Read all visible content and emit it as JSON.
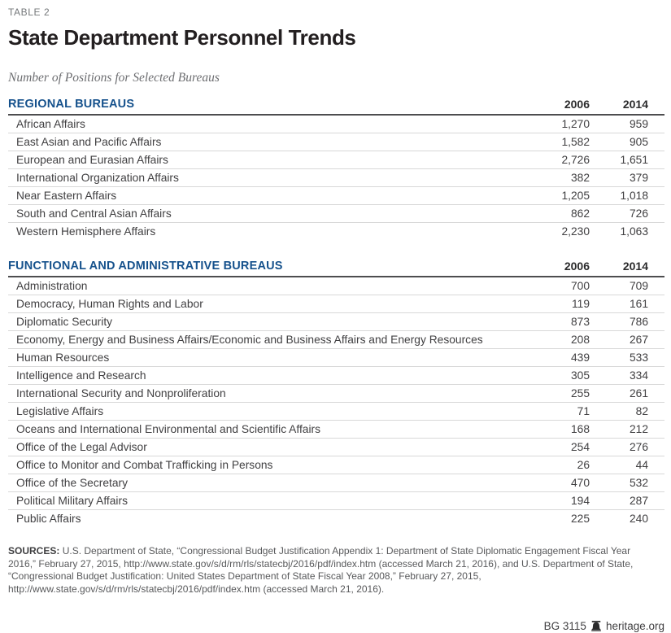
{
  "colors": {
    "accent_blue": "#15518c",
    "header_rule": "#4d4d4f",
    "row_rule": "#d8d8d8",
    "text_dark": "#414042",
    "subtitle_gray": "#6d6e71",
    "source_gray": "#58595b"
  },
  "header": {
    "table_label": "TABLE 2",
    "title": "State Department Personnel Trends",
    "subtitle": "Number of Positions for Selected Bureaus"
  },
  "chart_data": {
    "type": "table",
    "title": "State Department Personnel Trends",
    "subtitle": "Number of Positions for Selected Bureaus",
    "columns": [
      "2006",
      "2014"
    ],
    "sections": [
      {
        "header": "REGIONAL BUREAUS",
        "rows": [
          {
            "label": "African Affairs",
            "v2006": "1,270",
            "v2014": "959"
          },
          {
            "label": "East Asian and Pacific Affairs",
            "v2006": "1,582",
            "v2014": "905"
          },
          {
            "label": "European and Eurasian Affairs",
            "v2006": "2,726",
            "v2014": "1,651"
          },
          {
            "label": "International Organization Affairs",
            "v2006": "382",
            "v2014": "379"
          },
          {
            "label": "Near Eastern Affairs",
            "v2006": "1,205",
            "v2014": "1,018"
          },
          {
            "label": "South and Central Asian Affairs",
            "v2006": "862",
            "v2014": "726"
          },
          {
            "label": "Western Hemisphere Affairs",
            "v2006": "2,230",
            "v2014": "1,063"
          }
        ]
      },
      {
        "header": "FUNCTIONAL AND ADMINISTRATIVE BUREAUS",
        "rows": [
          {
            "label": "Administration",
            "v2006": "700",
            "v2014": "709"
          },
          {
            "label": "Democracy, Human Rights and Labor",
            "v2006": "119",
            "v2014": "161"
          },
          {
            "label": "Diplomatic Security",
            "v2006": "873",
            "v2014": "786"
          },
          {
            "label": "Economy, Energy and Business Affairs/Economic and Business Affairs and Energy Resources",
            "v2006": "208",
            "v2014": "267"
          },
          {
            "label": "Human Resources",
            "v2006": "439",
            "v2014": "533"
          },
          {
            "label": "Intelligence and Research",
            "v2006": "305",
            "v2014": "334"
          },
          {
            "label": "International Security and Nonproliferation",
            "v2006": "255",
            "v2014": "261"
          },
          {
            "label": "Legislative Affairs",
            "v2006": "71",
            "v2014": "82"
          },
          {
            "label": "Oceans and International Environmental and Scientific Affairs",
            "v2006": "168",
            "v2014": "212"
          },
          {
            "label": "Office of the Legal Advisor",
            "v2006": "254",
            "v2014": "276"
          },
          {
            "label": "Office to Monitor and Combat Trafficking in Persons",
            "v2006": "26",
            "v2014": "44"
          },
          {
            "label": "Office of the Secretary",
            "v2006": "470",
            "v2014": "532"
          },
          {
            "label": "Political Military Affairs",
            "v2006": "194",
            "v2014": "287"
          },
          {
            "label": "Public Affairs",
            "v2006": "225",
            "v2014": "240"
          }
        ]
      }
    ]
  },
  "sources": {
    "label": "SOURCES:",
    "text": "U.S. Department of State, “Congressional Budget Justification Appendix 1: Department of State Diplomatic Engagement Fiscal Year 2016,” February 27, 2015, http://www.state.gov/s/d/rm/rls/statecbj/2016/pdf/index.htm (accessed March 21, 2016), and U.S. Department of State, “Congressional Budget Justification: United States Department of State Fiscal Year 2008,” February 27, 2015, http://www.state.gov/s/d/rm/rls/statecbj/2016/pdf/index.htm (accessed March 21, 2016)."
  },
  "footer": {
    "doc_id": "BG 3115",
    "bell_icon": "liberty-bell-icon",
    "site": "heritage.org"
  }
}
